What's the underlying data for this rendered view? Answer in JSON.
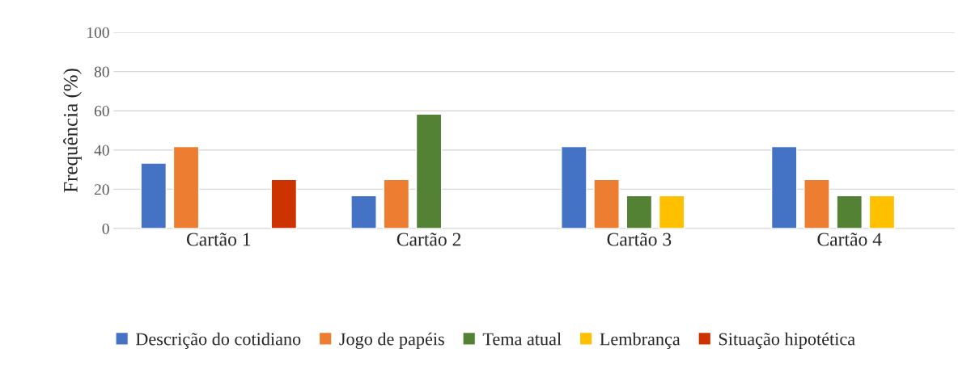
{
  "chart_data": {
    "type": "bar",
    "ylabel": "Frequência (%)",
    "categories": [
      "Cartão 1",
      "Cartão 2",
      "Cartão 3",
      "Cartão 4"
    ],
    "series": [
      {
        "name": "Descrição do cotidiano",
        "color": "#4472c4",
        "values": [
          33.3,
          16.7,
          41.7,
          41.7
        ]
      },
      {
        "name": "Jogo de papéis",
        "color": "#ed7d31",
        "values": [
          41.7,
          25,
          25,
          25
        ]
      },
      {
        "name": "Tema atual",
        "color": "#548235",
        "values": [
          null,
          58.3,
          16.7,
          16.7
        ]
      },
      {
        "name": "Lembrança",
        "color": "#ffc000",
        "values": [
          null,
          null,
          16.7,
          16.7
        ]
      },
      {
        "name": "Situação hipotética",
        "color": "#cc3300",
        "values": [
          25,
          null,
          null,
          null
        ]
      }
    ],
    "ylim": [
      0,
      100
    ],
    "yticks": [
      0,
      20,
      40,
      60,
      80,
      100
    ],
    "grid": "y",
    "legend": "bottom"
  }
}
